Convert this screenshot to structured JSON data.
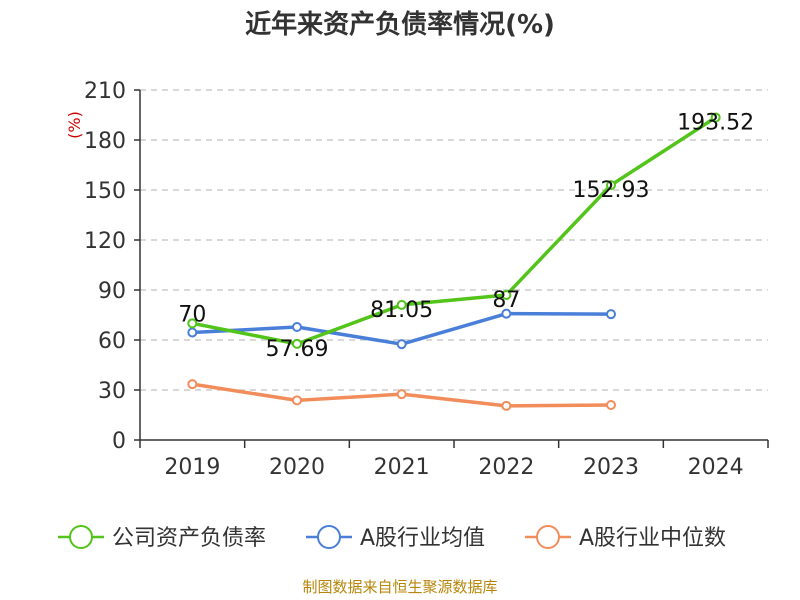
{
  "chart_data": {
    "type": "line",
    "title": "近年来资产负债率情况(%)",
    "ylabel": "(%)",
    "categories": [
      "2019",
      "2020",
      "2021",
      "2022",
      "2023",
      "2024"
    ],
    "yticks": [
      0,
      30,
      60,
      90,
      120,
      150,
      180,
      210
    ],
    "ylim": [
      0,
      210
    ],
    "grid": true,
    "legend_position": "bottom",
    "series": [
      {
        "name": "公司资产负债率",
        "color": "#52c41a",
        "values": [
          70,
          57.69,
          81.05,
          87,
          152.93,
          193.52
        ],
        "labels": [
          "70",
          "57.69",
          "81.05",
          "87",
          "152.93",
          "193.52"
        ]
      },
      {
        "name": "A股行业均值",
        "color": "#4a7fd9",
        "values": [
          64.5,
          67.8,
          57.5,
          75.8,
          75.5,
          null
        ]
      },
      {
        "name": "A股行业中位数",
        "color": "#f28c5a",
        "values": [
          33.5,
          23.8,
          27.5,
          20.5,
          21.0,
          null
        ]
      }
    ]
  },
  "source": "制图数据来自恒生聚源数据库"
}
